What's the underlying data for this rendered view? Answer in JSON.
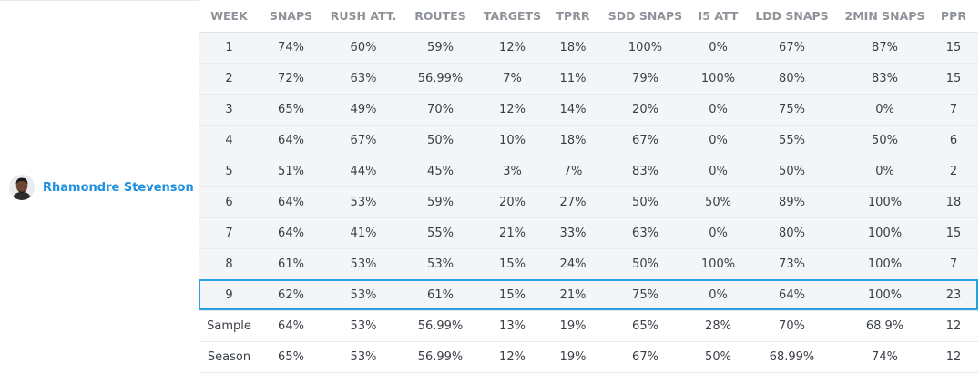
{
  "player": {
    "name": "Rhamondre Stevenson",
    "avatar_icon": "player-headshot-icon"
  },
  "table": {
    "columns": [
      "WEEK",
      "SNAPS",
      "RUSH ATT.",
      "ROUTES",
      "TARGETS",
      "TPRR",
      "SDD SNAPS",
      "I5 ATT",
      "LDD SNAPS",
      "2MIN SNAPS",
      "PPR"
    ],
    "rows": [
      [
        "1",
        "74%",
        "60%",
        "59%",
        "12%",
        "18%",
        "100%",
        "0%",
        "67%",
        "87%",
        "15"
      ],
      [
        "2",
        "72%",
        "63%",
        "56.99%",
        "7%",
        "11%",
        "79%",
        "100%",
        "80%",
        "83%",
        "15"
      ],
      [
        "3",
        "65%",
        "49%",
        "70%",
        "12%",
        "14%",
        "20%",
        "0%",
        "75%",
        "0%",
        "7"
      ],
      [
        "4",
        "64%",
        "67%",
        "50%",
        "10%",
        "18%",
        "67%",
        "0%",
        "55%",
        "50%",
        "6"
      ],
      [
        "5",
        "51%",
        "44%",
        "45%",
        "3%",
        "7%",
        "83%",
        "0%",
        "50%",
        "0%",
        "2"
      ],
      [
        "6",
        "64%",
        "53%",
        "59%",
        "20%",
        "27%",
        "50%",
        "50%",
        "89%",
        "100%",
        "18"
      ],
      [
        "7",
        "64%",
        "41%",
        "55%",
        "21%",
        "33%",
        "63%",
        "0%",
        "80%",
        "100%",
        "15"
      ],
      [
        "8",
        "61%",
        "53%",
        "53%",
        "15%",
        "24%",
        "50%",
        "100%",
        "73%",
        "100%",
        "7"
      ],
      [
        "9",
        "62%",
        "53%",
        "61%",
        "15%",
        "21%",
        "75%",
        "0%",
        "64%",
        "100%",
        "23"
      ]
    ],
    "summary": [
      [
        "Sample",
        "64%",
        "53%",
        "56.99%",
        "13%",
        "19%",
        "65%",
        "28%",
        "70%",
        "68.9%",
        "12"
      ],
      [
        "Season",
        "65%",
        "53%",
        "56.99%",
        "12%",
        "19%",
        "67%",
        "50%",
        "68.99%",
        "74%",
        "12"
      ]
    ],
    "highlighted_week": "9"
  },
  "colors": {
    "accent": "#1c8fe0",
    "highlight_border": "#2a9fe3",
    "row_background": "#f4f5f7",
    "header_text": "#8d9399"
  }
}
